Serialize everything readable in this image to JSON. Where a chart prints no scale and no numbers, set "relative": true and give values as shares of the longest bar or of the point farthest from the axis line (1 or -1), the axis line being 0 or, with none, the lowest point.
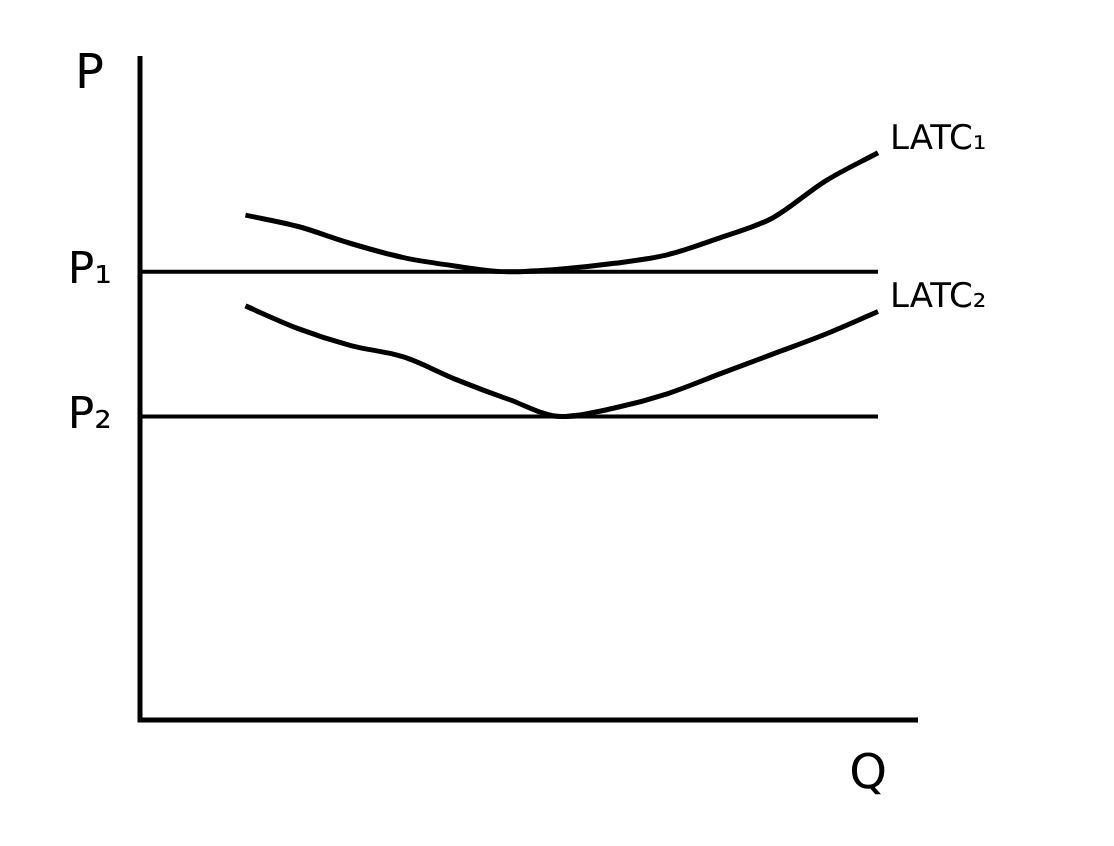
{
  "chart_data": {
    "type": "line",
    "relative": true,
    "xlabel": "Q",
    "ylabel": "P",
    "legend": false,
    "marker": "none",
    "line_style": "solid",
    "categories": [
      null,
      null,
      null,
      null,
      null,
      null,
      null,
      null,
      null,
      null,
      null,
      null,
      null,
      null,
      null
    ],
    "series": [
      {
        "name": "LATC₁",
        "color": "#000000",
        "values": [
          null,
          null,
          0.89,
          0.87,
          0.84,
          0.815,
          0.8,
          0.79,
          0.795,
          0.805,
          0.82,
          0.85,
          0.885,
          0.95,
          1.0
        ]
      },
      {
        "name": "LATC₂",
        "color": "#000000",
        "values": [
          null,
          null,
          0.73,
          0.69,
          0.66,
          0.64,
          0.6,
          0.565,
          0.535,
          0.55,
          0.575,
          0.61,
          0.645,
          0.68,
          0.72
        ]
      }
    ],
    "ref_lines": [
      {
        "axis": "y",
        "value": 0.79,
        "label": "P₁",
        "color": "#000000"
      },
      {
        "axis": "y",
        "value": 0.535,
        "label": "P₂",
        "color": "#000000"
      }
    ]
  }
}
